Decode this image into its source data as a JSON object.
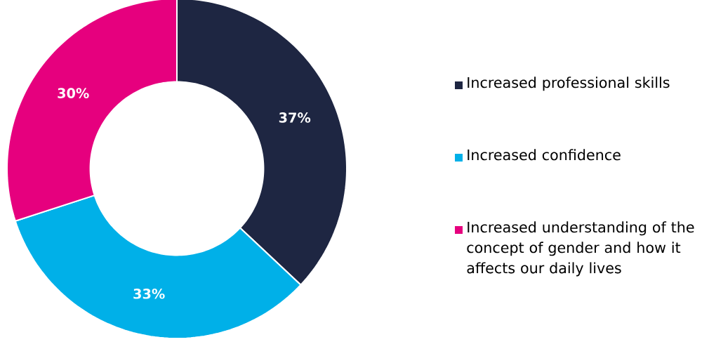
{
  "chart_data": {
    "type": "donut",
    "categories": [
      "Increased professional skills",
      "Increased confidence",
      "Increased understanding of the concept of gender and how it affects our daily lives"
    ],
    "values": [
      37,
      33,
      30
    ],
    "colors": [
      "#1e2642",
      "#00b0e8",
      "#e6007e"
    ],
    "value_labels": [
      "37%",
      "33%",
      "30%"
    ],
    "legend": "right"
  }
}
